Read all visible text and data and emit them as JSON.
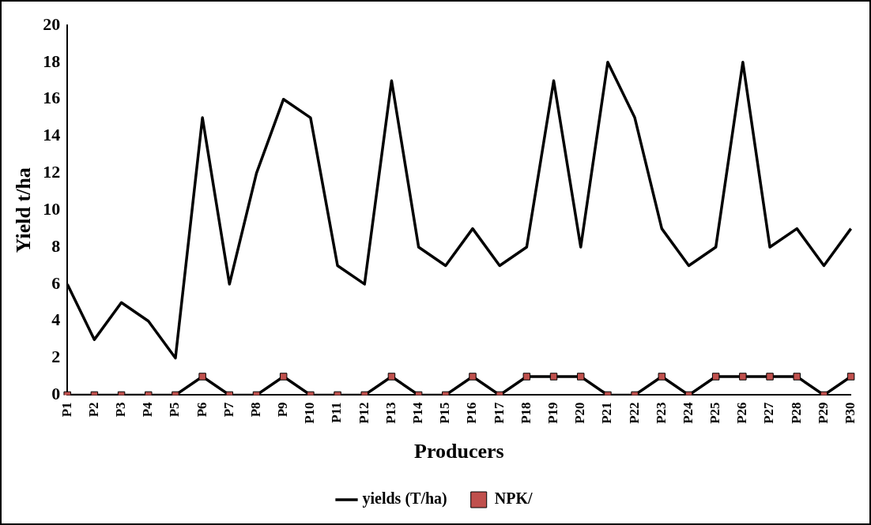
{
  "chart_data": {
    "type": "line",
    "xlabel": "Producers",
    "ylabel": "Yield t/ha",
    "categories": [
      "P1",
      "P2",
      "P3",
      "P4",
      "P5",
      "P6",
      "P7",
      "P8",
      "P9",
      "P10",
      "P11",
      "P12",
      "P13",
      "P14",
      "P15",
      "P16",
      "P17",
      "P18",
      "P19",
      "P20",
      "P21",
      "P22",
      "P23",
      "P24",
      "P25",
      "P26",
      "P27",
      "P28",
      "P29",
      "P30"
    ],
    "series": [
      {
        "name": "yields (T/ha)",
        "color": "#000000",
        "marker": "none",
        "values": [
          6,
          3,
          5,
          4,
          2,
          15,
          6,
          12,
          16,
          15,
          7,
          6,
          17,
          8,
          7,
          9,
          7,
          8,
          17,
          8,
          18,
          15,
          9,
          7,
          8,
          18,
          8,
          9,
          7,
          9
        ]
      },
      {
        "name": "NPK/",
        "color": "#c0504d",
        "marker": "square",
        "values": [
          0,
          0,
          0,
          0,
          0,
          1,
          0,
          0,
          1,
          0,
          0,
          0,
          1,
          0,
          0,
          1,
          0,
          1,
          1,
          1,
          0,
          0,
          1,
          0,
          1,
          1,
          1,
          1,
          0,
          1
        ]
      }
    ],
    "ylim": [
      0,
      20
    ],
    "yticks": [
      0,
      2,
      4,
      6,
      8,
      10,
      12,
      14,
      16,
      18,
      20
    ],
    "grid": false,
    "legend": "bottom"
  }
}
